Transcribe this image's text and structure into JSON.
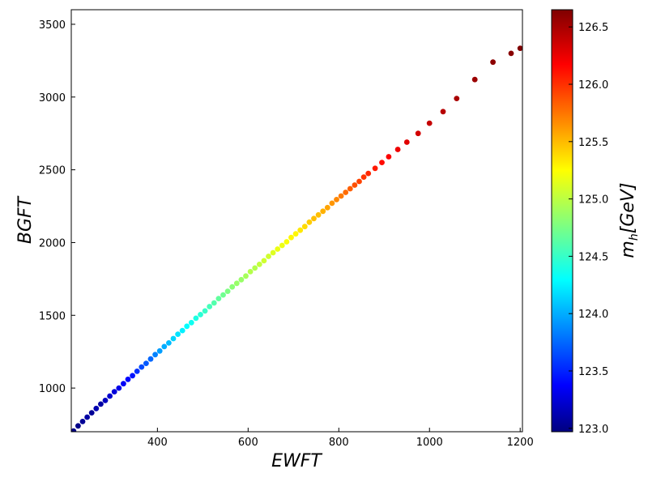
{
  "chart_data": {
    "type": "scatter",
    "xlabel": "EWFT",
    "ylabel": "BGFT",
    "xlim": [
      210,
      1205
    ],
    "ylim": [
      700,
      3600
    ],
    "xticks": [
      400,
      600,
      800,
      1000,
      1200
    ],
    "yticks": [
      1000,
      1500,
      2000,
      2500,
      3000,
      3500
    ],
    "xtick_labels": [
      "400",
      "600",
      "800",
      "1000",
      "1200"
    ],
    "ytick_labels": [
      "1000",
      "1500",
      "2000",
      "2500",
      "3000",
      "3500"
    ],
    "colorbar": {
      "label": "m_h [GeV]",
      "label_main": "m",
      "label_sub": "h",
      "label_tail": "[GeV]",
      "colormap": "jet",
      "range": [
        122.97,
        126.65
      ],
      "ticks": [
        123.0,
        123.5,
        124.0,
        124.5,
        125.0,
        125.5,
        126.0,
        126.5
      ],
      "tick_labels": [
        "123.0",
        "123.5",
        "124.0",
        "124.5",
        "125.0",
        "125.5",
        "126.0",
        "126.5"
      ]
    },
    "grid": false,
    "legend": "none",
    "points": [
      {
        "x": 215,
        "y": 705,
        "c": 122.99
      },
      {
        "x": 225,
        "y": 740,
        "c": 123.0
      },
      {
        "x": 235,
        "y": 770,
        "c": 123.05
      },
      {
        "x": 245,
        "y": 800,
        "c": 123.1
      },
      {
        "x": 255,
        "y": 830,
        "c": 123.05
      },
      {
        "x": 265,
        "y": 860,
        "c": 123.15
      },
      {
        "x": 275,
        "y": 890,
        "c": 123.1
      },
      {
        "x": 285,
        "y": 915,
        "c": 123.2
      },
      {
        "x": 295,
        "y": 945,
        "c": 123.25
      },
      {
        "x": 305,
        "y": 975,
        "c": 123.3
      },
      {
        "x": 315,
        "y": 1000,
        "c": 123.35
      },
      {
        "x": 325,
        "y": 1030,
        "c": 123.4
      },
      {
        "x": 335,
        "y": 1060,
        "c": 123.45
      },
      {
        "x": 345,
        "y": 1085,
        "c": 123.5
      },
      {
        "x": 355,
        "y": 1115,
        "c": 123.6
      },
      {
        "x": 365,
        "y": 1145,
        "c": 123.7
      },
      {
        "x": 375,
        "y": 1170,
        "c": 123.75
      },
      {
        "x": 385,
        "y": 1200,
        "c": 123.8
      },
      {
        "x": 395,
        "y": 1230,
        "c": 123.9
      },
      {
        "x": 405,
        "y": 1255,
        "c": 124.0
      },
      {
        "x": 415,
        "y": 1285,
        "c": 124.05
      },
      {
        "x": 425,
        "y": 1310,
        "c": 124.1
      },
      {
        "x": 435,
        "y": 1340,
        "c": 124.2
      },
      {
        "x": 445,
        "y": 1370,
        "c": 124.25
      },
      {
        "x": 455,
        "y": 1395,
        "c": 124.3
      },
      {
        "x": 465,
        "y": 1425,
        "c": 124.35
      },
      {
        "x": 475,
        "y": 1450,
        "c": 124.4
      },
      {
        "x": 485,
        "y": 1480,
        "c": 124.45
      },
      {
        "x": 495,
        "y": 1505,
        "c": 124.5
      },
      {
        "x": 505,
        "y": 1530,
        "c": 124.55
      },
      {
        "x": 515,
        "y": 1560,
        "c": 124.6
      },
      {
        "x": 525,
        "y": 1585,
        "c": 124.65
      },
      {
        "x": 535,
        "y": 1615,
        "c": 124.7
      },
      {
        "x": 545,
        "y": 1640,
        "c": 124.75
      },
      {
        "x": 555,
        "y": 1665,
        "c": 124.8
      },
      {
        "x": 565,
        "y": 1695,
        "c": 124.85
      },
      {
        "x": 575,
        "y": 1720,
        "c": 124.9
      },
      {
        "x": 585,
        "y": 1745,
        "c": 124.9
      },
      {
        "x": 595,
        "y": 1770,
        "c": 124.95
      },
      {
        "x": 605,
        "y": 1800,
        "c": 125.0
      },
      {
        "x": 615,
        "y": 1825,
        "c": 125.0
      },
      {
        "x": 625,
        "y": 1850,
        "c": 125.05
      },
      {
        "x": 635,
        "y": 1875,
        "c": 125.1
      },
      {
        "x": 645,
        "y": 1905,
        "c": 125.1
      },
      {
        "x": 655,
        "y": 1930,
        "c": 125.15
      },
      {
        "x": 665,
        "y": 1955,
        "c": 125.2
      },
      {
        "x": 675,
        "y": 1980,
        "c": 125.2
      },
      {
        "x": 685,
        "y": 2005,
        "c": 125.25
      },
      {
        "x": 695,
        "y": 2035,
        "c": 125.3
      },
      {
        "x": 705,
        "y": 2060,
        "c": 125.3
      },
      {
        "x": 715,
        "y": 2085,
        "c": 125.35
      },
      {
        "x": 725,
        "y": 2110,
        "c": 125.4
      },
      {
        "x": 735,
        "y": 2140,
        "c": 125.45
      },
      {
        "x": 745,
        "y": 2165,
        "c": 125.5
      },
      {
        "x": 755,
        "y": 2190,
        "c": 125.5
      },
      {
        "x": 765,
        "y": 2215,
        "c": 125.55
      },
      {
        "x": 775,
        "y": 2240,
        "c": 125.6
      },
      {
        "x": 785,
        "y": 2270,
        "c": 125.65
      },
      {
        "x": 795,
        "y": 2295,
        "c": 125.7
      },
      {
        "x": 805,
        "y": 2320,
        "c": 125.75
      },
      {
        "x": 815,
        "y": 2345,
        "c": 125.8
      },
      {
        "x": 825,
        "y": 2370,
        "c": 125.85
      },
      {
        "x": 835,
        "y": 2395,
        "c": 125.9
      },
      {
        "x": 845,
        "y": 2420,
        "c": 125.95
      },
      {
        "x": 855,
        "y": 2450,
        "c": 126.0
      },
      {
        "x": 865,
        "y": 2475,
        "c": 126.05
      },
      {
        "x": 880,
        "y": 2510,
        "c": 126.1
      },
      {
        "x": 895,
        "y": 2550,
        "c": 126.15
      },
      {
        "x": 910,
        "y": 2590,
        "c": 126.2
      },
      {
        "x": 930,
        "y": 2640,
        "c": 126.25
      },
      {
        "x": 950,
        "y": 2690,
        "c": 126.3
      },
      {
        "x": 975,
        "y": 2750,
        "c": 126.35
      },
      {
        "x": 1000,
        "y": 2820,
        "c": 126.4
      },
      {
        "x": 1030,
        "y": 2900,
        "c": 126.45
      },
      {
        "x": 1060,
        "y": 2990,
        "c": 126.5
      },
      {
        "x": 1100,
        "y": 3120,
        "c": 126.55
      },
      {
        "x": 1140,
        "y": 3240,
        "c": 126.6
      },
      {
        "x": 1180,
        "y": 3300,
        "c": 126.62
      },
      {
        "x": 1200,
        "y": 3335,
        "c": 126.65
      }
    ]
  }
}
